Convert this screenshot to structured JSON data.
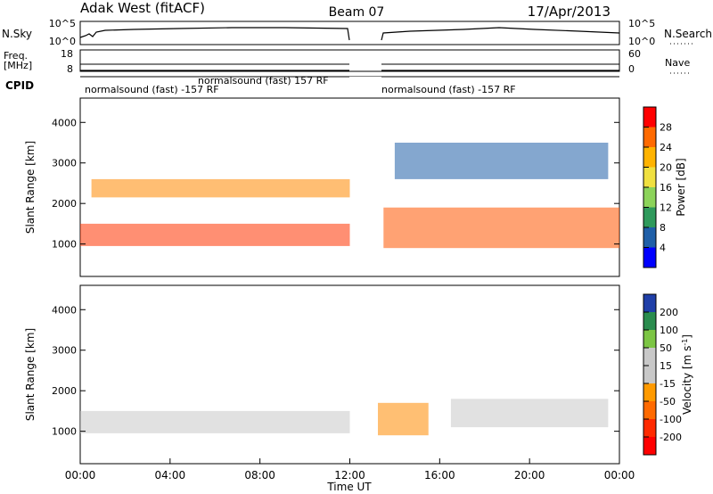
{
  "header": {
    "title": "Adak West (fitACF)",
    "beam": "Beam 07",
    "date": "17/Apr/2013"
  },
  "chart_data": [
    {
      "type": "line",
      "panel": "noise",
      "left_label": "N.Sky",
      "right_label": "N.Search",
      "left_ticks": [
        "10^5",
        "10^0"
      ],
      "right_ticks": [
        "10^5",
        "10^0"
      ],
      "note": "noise level time series, data gap between 12:00 and 13:15 UT"
    },
    {
      "type": "line",
      "panel": "frequency",
      "left_label_lines": [
        "Freq.",
        "[MHz]"
      ],
      "right_label": "Nave",
      "left_ticks": [
        "18",
        "8"
      ],
      "right_ticks": [
        "60",
        "0"
      ]
    },
    {
      "type": "table",
      "panel": "cpid",
      "label": "CPID",
      "entries": [
        {
          "text": "normalsound (fast) 157 RF",
          "x_hours": 8.8
        },
        {
          "text": "normalsound (fast) -157 RF",
          "x_hours": 4.2
        },
        {
          "text": "normalsound (fast) -157 RF",
          "x_hours": 17.0
        }
      ]
    },
    {
      "type": "heatmap",
      "panel": "power",
      "ylabel": "Slant Range [km]",
      "ylim": [
        200,
        4600
      ],
      "yticks": [
        1000,
        2000,
        3000,
        4000
      ],
      "colorbar_label": "Power [dB]",
      "colorbar_ticks": [
        "28",
        "24",
        "20",
        "16",
        "12",
        "8",
        "4"
      ],
      "colorbar_colors": [
        "#ff0000",
        "#ff6a00",
        "#ffb300",
        "#f0e040",
        "#8cd35a",
        "#2f9a5c",
        "#1f5fa8",
        "#0000ff"
      ],
      "bands": [
        {
          "t0": 0.0,
          "t1": 12.0,
          "r0": 950,
          "r1": 1500,
          "color": "#ff3300",
          "desc": "main echo band"
        },
        {
          "t0": 0.5,
          "t1": 12.0,
          "r0": 2150,
          "r1": 2600,
          "color": "#ff8800",
          "desc": "upper echo band"
        },
        {
          "t0": 13.5,
          "t1": 24.0,
          "r0": 900,
          "r1": 1900,
          "color": "#ff5500",
          "desc": "main echo band"
        },
        {
          "t0": 14.0,
          "t1": 23.5,
          "r0": 2600,
          "r1": 3500,
          "color": "#1f5fa8",
          "desc": "upper scatter"
        }
      ]
    },
    {
      "type": "heatmap",
      "panel": "velocity",
      "ylabel": "Slant Range [km]",
      "xlabel": "Time UT",
      "ylim": [
        200,
        4600
      ],
      "yticks": [
        1000,
        2000,
        3000,
        4000
      ],
      "xticks": [
        "00:00",
        "04:00",
        "08:00",
        "12:00",
        "16:00",
        "20:00",
        "00:00"
      ],
      "colorbar_label_parts": [
        "Velocity [m s",
        "-1",
        "]"
      ],
      "colorbar_ticks": [
        "200",
        "100",
        "50",
        "15",
        "-15",
        "-50",
        "-100",
        "-200"
      ],
      "colorbar_colors": [
        "#1f3fa8",
        "#2a8c4e",
        "#7cc544",
        "#c8c8c8",
        "#c8c8c8",
        "#ff9a00",
        "#ff6a00",
        "#ff2a00",
        "#ff0000"
      ],
      "bands": [
        {
          "t0": 0.0,
          "t1": 12.0,
          "r0": 950,
          "r1": 1500,
          "color": "#c8c8c8",
          "desc": "near-zero velocity band"
        },
        {
          "t0": 13.0,
          "t1": 15.5,
          "r0": 900,
          "r1": 1700,
          "color": "#ff8a00",
          "desc": "negative velocity patch"
        },
        {
          "t0": 16.5,
          "t1": 23.5,
          "r0": 1100,
          "r1": 1800,
          "color": "#c8c8c8",
          "desc": "near-zero velocity band"
        }
      ]
    }
  ]
}
